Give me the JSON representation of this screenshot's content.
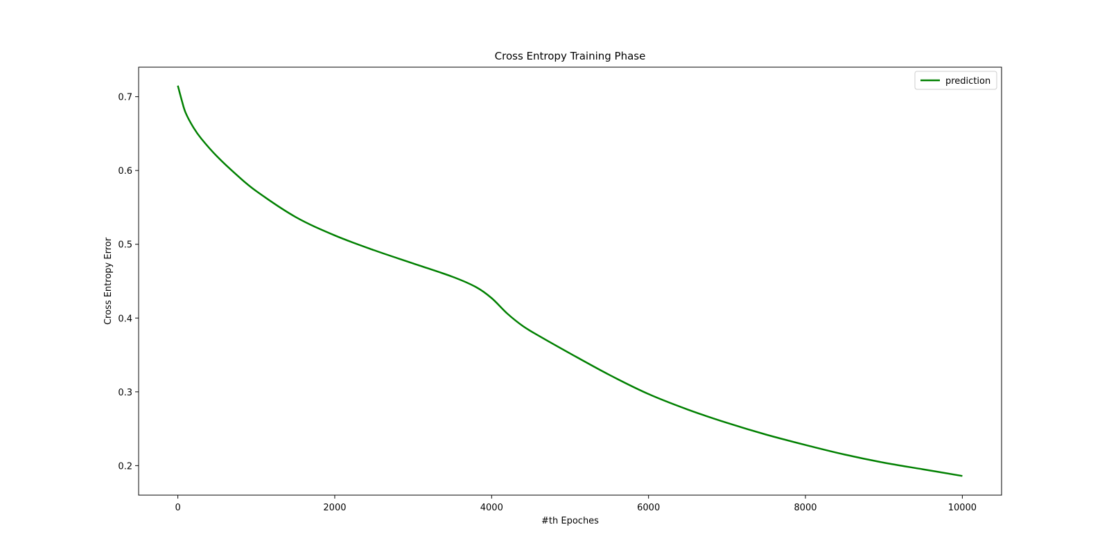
{
  "chart_data": {
    "type": "line",
    "title": "Cross Entropy Training Phase",
    "xlabel": "#th Epoches",
    "ylabel": "Cross Entropy Error",
    "xlim": [
      -500,
      10500
    ],
    "ylim": [
      0.16,
      0.74
    ],
    "xticks": [
      0,
      2000,
      4000,
      6000,
      8000,
      10000
    ],
    "yticks": [
      0.2,
      0.3,
      0.4,
      0.5,
      0.6,
      0.7
    ],
    "grid": false,
    "legend_position": "top-right",
    "series": [
      {
        "name": "prediction",
        "color": "#008000",
        "x": [
          0,
          50,
          100,
          200,
          300,
          500,
          750,
          1000,
          1500,
          2000,
          2500,
          3000,
          3500,
          3800,
          4000,
          4200,
          4400,
          4600,
          5000,
          5500,
          6000,
          6500,
          7000,
          7500,
          8000,
          8500,
          9000,
          9500,
          10000
        ],
        "y": [
          0.715,
          0.695,
          0.678,
          0.658,
          0.643,
          0.619,
          0.594,
          0.572,
          0.537,
          0.512,
          0.492,
          0.474,
          0.456,
          0.442,
          0.427,
          0.406,
          0.389,
          0.376,
          0.352,
          0.323,
          0.297,
          0.276,
          0.258,
          0.242,
          0.228,
          0.215,
          0.204,
          0.195,
          0.186
        ]
      }
    ]
  }
}
